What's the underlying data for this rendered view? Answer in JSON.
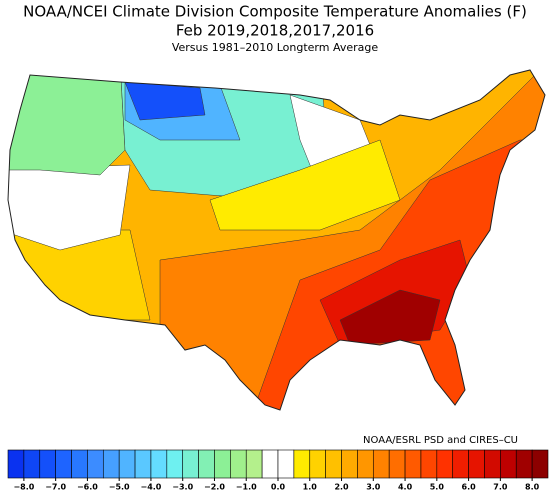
{
  "header": {
    "title": "NOAA/NCEI Climate Division Composite Temperature Anomalies (F)",
    "subtitle": "Feb  2019,2018,2017,2016",
    "note": "Versus 1981–2010 Longterm Average"
  },
  "credit": "NOAA/ESRL PSD and CIRES–CU",
  "colorbar": {
    "lim": [
      -8.5,
      8.5
    ],
    "colors": [
      "#0a32f0",
      "#0f46f5",
      "#1450fa",
      "#1e64ff",
      "#2878ff",
      "#3c8cff",
      "#46a0ff",
      "#50b4ff",
      "#5ac8ff",
      "#64dcff",
      "#6ef0f0",
      "#78f0d2",
      "#82f0b4",
      "#8cf096",
      "#a0f08c",
      "#b4f08c",
      "#ffffff",
      "#ffffff",
      "#ffeb00",
      "#ffd200",
      "#ffc000",
      "#ffaa00",
      "#ff9600",
      "#ff8200",
      "#ff6e00",
      "#ff5a00",
      "#ff4600",
      "#ff3200",
      "#f01e00",
      "#e61400",
      "#d20a00",
      "#be0000",
      "#a00000",
      "#8c0000"
    ],
    "ticks": [
      {
        "value": -8,
        "label": "−8.0"
      },
      {
        "value": -7,
        "label": "−7.0"
      },
      {
        "value": -6,
        "label": "−6.0"
      },
      {
        "value": -5,
        "label": "−5.0"
      },
      {
        "value": -4,
        "label": "−4.0"
      },
      {
        "value": -3,
        "label": "−3.0"
      },
      {
        "value": -2,
        "label": "−2.0"
      },
      {
        "value": -1,
        "label": "−1.0"
      },
      {
        "value": 0,
        "label": "0.0"
      },
      {
        "value": 1,
        "label": "1.0"
      },
      {
        "value": 2,
        "label": "2.0"
      },
      {
        "value": 3,
        "label": "3.0"
      },
      {
        "value": 4,
        "label": "4.0"
      },
      {
        "value": 5,
        "label": "5.0"
      },
      {
        "value": 6,
        "label": "6.0"
      },
      {
        "value": 7,
        "label": "7.0"
      },
      {
        "value": 8,
        "label": "8.0"
      }
    ]
  }
}
